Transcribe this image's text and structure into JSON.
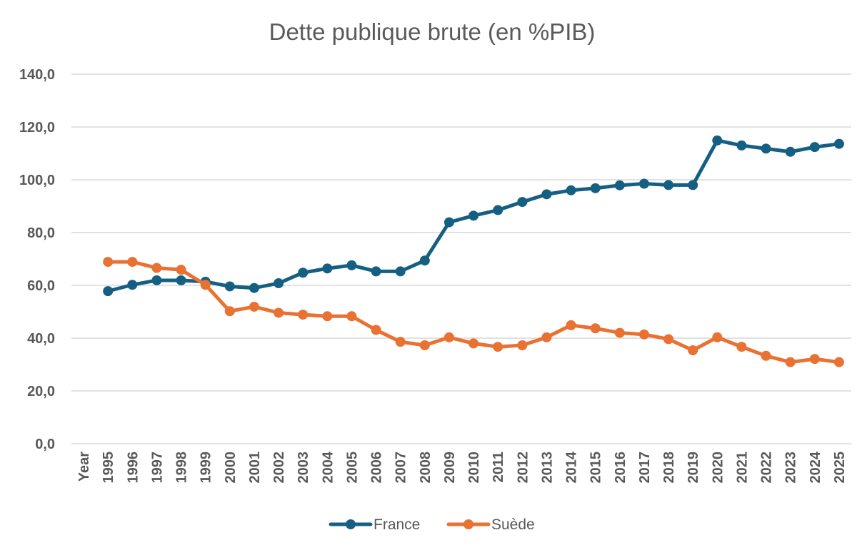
{
  "chart_data": {
    "type": "line",
    "title": "Dette publique brute (en %PIB)",
    "xlabel": "",
    "ylabel": "",
    "ylim": [
      0,
      140
    ],
    "yticks": [
      "0,0",
      "20,0",
      "40,0",
      "60,0",
      "80,0",
      "100,0",
      "120,0",
      "140,0"
    ],
    "ytick_values": [
      0,
      20,
      40,
      60,
      80,
      100,
      120,
      140
    ],
    "categories": [
      "Year",
      "1995",
      "1996",
      "1997",
      "1998",
      "1999",
      "2000",
      "2001",
      "2002",
      "2003",
      "2004",
      "2005",
      "2006",
      "2007",
      "2008",
      "2009",
      "2010",
      "2011",
      "2012",
      "2013",
      "2014",
      "2015",
      "2016",
      "2017",
      "2018",
      "2019",
      "2020",
      "2021",
      "2022",
      "2023",
      "2024",
      "2025"
    ],
    "grid": true,
    "legend_position": "bottom-center",
    "series": [
      {
        "name": "France",
        "color": "#156082",
        "values": [
          null,
          57.8,
          60.2,
          61.9,
          61.9,
          61.4,
          59.6,
          59.0,
          60.8,
          64.8,
          66.4,
          67.6,
          65.3,
          65.3,
          69.4,
          83.9,
          86.4,
          88.5,
          91.6,
          94.5,
          96.0,
          96.8,
          97.9,
          98.5,
          98.0,
          98.0,
          114.9,
          113.0,
          111.8,
          110.6,
          112.4,
          113.6
        ]
      },
      {
        "name": "Suède",
        "color": "#e97132",
        "values": [
          null,
          68.9,
          68.9,
          66.6,
          65.9,
          60.2,
          50.2,
          51.9,
          49.6,
          48.9,
          48.3,
          48.3,
          43.1,
          38.6,
          37.3,
          40.3,
          38.0,
          36.7,
          37.3,
          40.3,
          44.9,
          43.7,
          42.0,
          41.4,
          39.6,
          35.4,
          40.3,
          36.7,
          33.3,
          30.9,
          32.1,
          30.9
        ]
      }
    ]
  }
}
